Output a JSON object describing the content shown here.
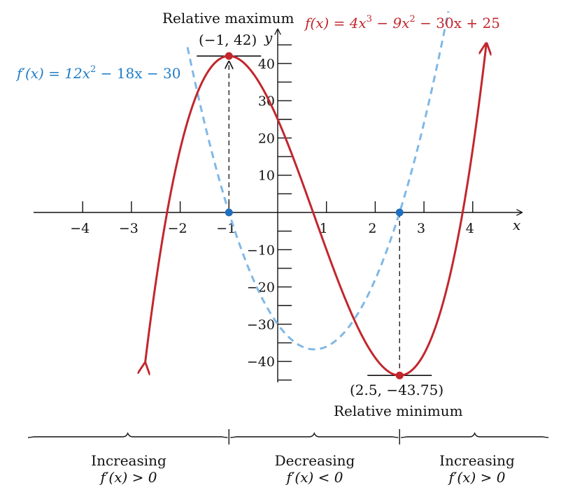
{
  "chart_data": {
    "type": "line",
    "xlabel": "x",
    "ylabel": "y",
    "xlim": [
      -4.7,
      4.7
    ],
    "ylim": [
      -46,
      48
    ],
    "x_ticks": [
      -4,
      -3,
      -2,
      -1,
      1,
      2,
      3,
      4
    ],
    "x_tick_labels": [
      "−4",
      "−3",
      "−2",
      "−1",
      "1",
      "2",
      "3",
      "4"
    ],
    "y_ticks": [
      -40,
      -30,
      -20,
      -10,
      10,
      20,
      30,
      40
    ],
    "y_tick_labels": [
      "−40",
      "−30",
      "−20",
      "−10",
      "10",
      "20",
      "30",
      "40"
    ],
    "series": [
      {
        "name": "f(x) = 4x³ − 9x² − 30x + 25",
        "color": "#c1272d",
        "style": "solid",
        "coefficients": [
          4,
          -9,
          -30,
          25
        ],
        "domain": [
          -2.72,
          4.28
        ]
      },
      {
        "name": "f′(x) = 12x² − 18x − 30",
        "color": "#7fb8e6",
        "style": "dashed",
        "coefficients": [
          12,
          -18,
          -30
        ],
        "domain": [
          -1.85,
          3.5
        ]
      }
    ],
    "points": [
      {
        "x": -1,
        "y": 42,
        "label": "(−1, 42)",
        "note": "Relative maximum",
        "color": "#c1272d"
      },
      {
        "x": 2.5,
        "y": -43.75,
        "label": "(2.5, −43.75)",
        "note": "Relative minimum",
        "color": "#c1272d"
      },
      {
        "x": -1,
        "y": 0,
        "color": "#1f6fc1"
      },
      {
        "x": 2.5,
        "y": 0,
        "color": "#1f6fc1"
      }
    ],
    "annotations": {
      "f_label_prefix": "f(x) = 4x",
      "f_label_e1": "3",
      "f_label_mid": " − 9x",
      "f_label_e2": "2",
      "f_label_suffix": " − 30x + 25",
      "fp_label_prefix": "f′(x) = 12x",
      "fp_label_e": "2",
      "fp_label_suffix": " − 18x − 30",
      "max_title": "Relative maximum",
      "max_coord": "(−1, 42)",
      "min_coord": "(2.5, −43.75)",
      "min_title": "Relative minimum"
    },
    "intervals": [
      {
        "title": "Increasing",
        "condition": "f′(x) > 0"
      },
      {
        "title": "Decreasing",
        "condition": "f′(x) < 0"
      },
      {
        "title": "Increasing",
        "condition": "f′(x) > 0"
      }
    ],
    "interval_breaks": [
      -1,
      2.5
    ]
  }
}
